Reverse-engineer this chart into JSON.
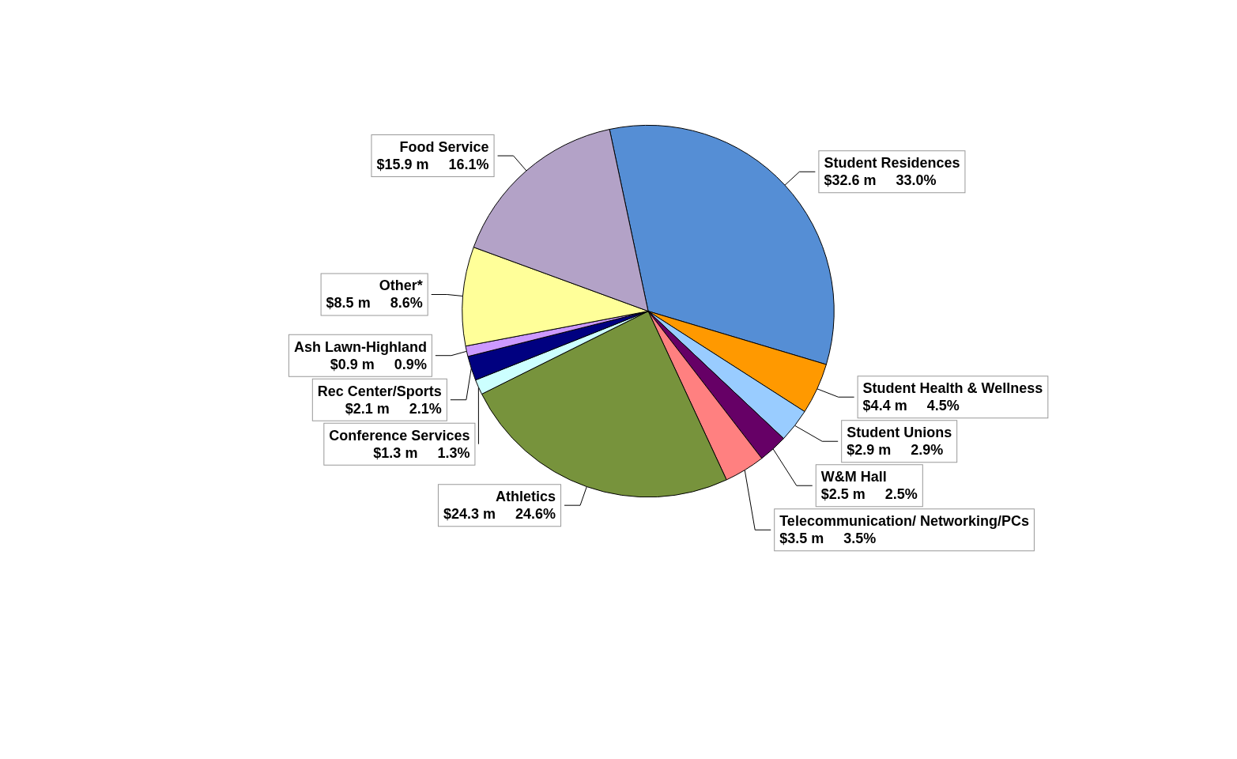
{
  "chart_data": {
    "type": "pie",
    "categories": [
      "Student Residences",
      "Student Health & Wellness",
      "Student Unions",
      "W&M Hall",
      "Telecommunication/ Networking/PCs",
      "Athletics",
      "Conference Services",
      "Rec Center/Sports",
      "Ash Lawn-Highland",
      "Other*",
      "Food Service"
    ],
    "values": [
      32.6,
      4.4,
      2.9,
      2.5,
      3.5,
      24.3,
      1.3,
      2.1,
      0.9,
      8.5,
      15.9
    ],
    "value_labels": [
      "$32.6 m     33.0%",
      "$4.4 m     4.5%",
      "$2.9 m     2.9%",
      "$2.5 m     2.5%",
      "$3.5 m     3.5%",
      "$24.3 m     24.6%",
      "$1.3 m     1.3%",
      "$2.1 m     2.1%",
      "$0.9 m     0.9%",
      "$8.5 m     8.6%",
      "$15.9 m     16.1%"
    ],
    "colors": [
      "#558ed5",
      "#ff9900",
      "#99ccff",
      "#660066",
      "#ff8080",
      "#77933c",
      "#ccffff",
      "#000080",
      "#cc99ff",
      "#ffff99",
      "#b3a2c7"
    ],
    "legend": false
  }
}
